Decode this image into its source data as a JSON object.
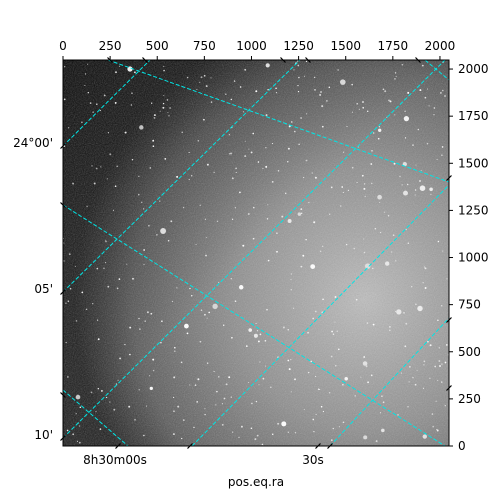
{
  "chart_data": {
    "type": "heatmap",
    "title": "",
    "xlabel": "pos.eq.ra",
    "ylabel": "",
    "pixel_axes": {
      "x_range": [
        0,
        2048
      ],
      "y_range": [
        0,
        2048
      ],
      "top_ticks": [
        0,
        250,
        500,
        750,
        1000,
        1250,
        1500,
        1750,
        2000
      ],
      "right_ticks": [
        0,
        250,
        500,
        750,
        1000,
        1250,
        1500,
        1750,
        2000
      ]
    },
    "world_axes": {
      "ra_tick_labels": [
        "8h30m00s",
        "30s"
      ],
      "dec_tick_labels": [
        "24°00'",
        "05'",
        "10'"
      ]
    },
    "image": {
      "colormap": "gray",
      "description_values": {
        "background_level": "mid-grey",
        "vignetting": "darker corners, brighter toward lower-right"
      }
    },
    "grid": true,
    "grid_color": "#00e5e5"
  }
}
